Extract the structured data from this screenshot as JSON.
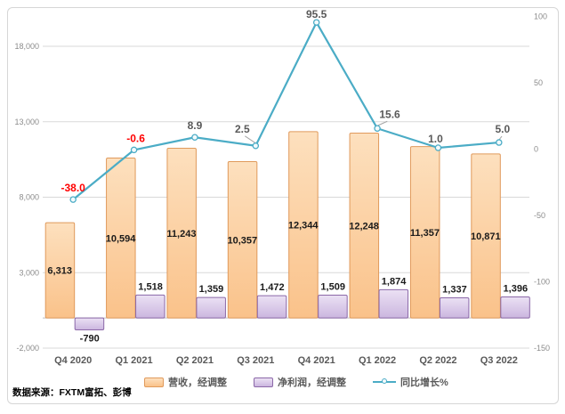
{
  "source_note": "数据来源：FXTM富拓、彭博",
  "legend": {
    "items": [
      {
        "label": "营收，经调整",
        "swatch": "bar-orange-swatch"
      },
      {
        "label": "净利润，经调整",
        "swatch": "bar-purple-swatch"
      },
      {
        "label": "同比增长%",
        "swatch": "line-teal-swatch"
      }
    ]
  },
  "colors": {
    "revenue_fill_top": "#FDE0BE",
    "revenue_fill_bottom": "#FAC28A",
    "revenue_border": "#E09A5C",
    "profit_fill_top": "#EBE1F4",
    "profit_fill_bottom": "#CBB6DF",
    "profit_border": "#8B68A8",
    "growth_line": "#4BACC6",
    "marker_fill": "#F3FAFC",
    "negative_label": "#FF0000",
    "gridline": "#D9D9D9",
    "zero_axis": "#BFBFBF",
    "leader_line": "#A6A6A6",
    "axis_label": "#8C8C8C",
    "category_label": "#595959",
    "bar_label": "#1A1A1A",
    "line_label": "#595959",
    "frame_border": "#D6D6D6"
  },
  "chart_data": {
    "type": "bar",
    "subtype": "combo bar+line, dual axis",
    "categories": [
      "Q4 2020",
      "Q1 2021",
      "Q2 2021",
      "Q3 2021",
      "Q4 2021",
      "Q1 2022",
      "Q2 2022",
      "Q3 2022"
    ],
    "series": [
      {
        "name": "营收，经调整",
        "type": "bar",
        "axis": "left",
        "values": [
          6313,
          10594,
          11243,
          10357,
          12344,
          12248,
          11357,
          10871
        ]
      },
      {
        "name": "净利润，经调整",
        "type": "bar",
        "axis": "left",
        "values": [
          -790,
          1518,
          1359,
          1472,
          1509,
          1874,
          1337,
          1396
        ]
      },
      {
        "name": "同比增长%",
        "type": "line",
        "axis": "right",
        "values": [
          -38.0,
          -0.6,
          8.9,
          2.5,
          95.5,
          15.6,
          1.0,
          5.0
        ]
      }
    ],
    "left_axis": {
      "ticks": [
        -2000,
        3000,
        8000,
        13000,
        18000
      ],
      "range": [
        -2000,
        18000
      ]
    },
    "right_axis": {
      "ticks": [
        -150,
        -100,
        -50,
        0,
        50,
        100
      ],
      "range": [
        -150,
        100
      ]
    },
    "grid": "horizontal major gridlines (left axis)",
    "legend_position": "bottom",
    "title": ""
  }
}
